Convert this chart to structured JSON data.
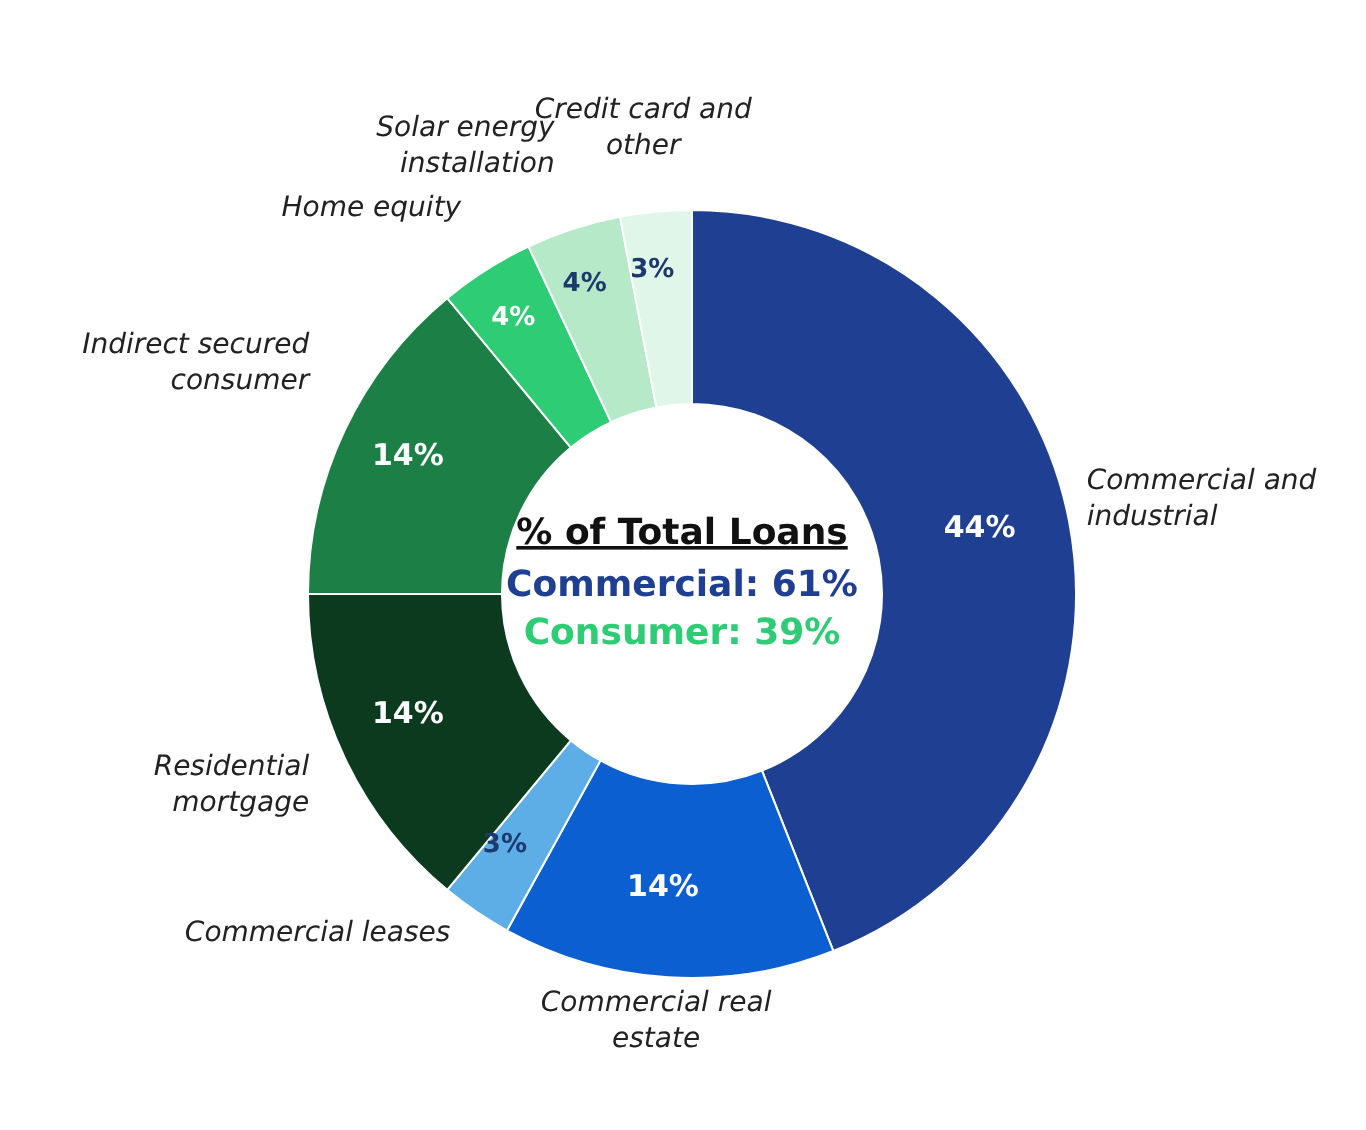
{
  "chart_data": {
    "type": "donut",
    "title": "% of Total Loans",
    "categories": [
      "Commercial and industrial",
      "Commercial real estate",
      "Commercial leases",
      "Residential mortgage",
      "Indirect secured consumer",
      "Home equity",
      "Solar energy installation",
      "Credit card and other"
    ],
    "values": [
      44,
      14,
      3,
      14,
      14,
      4,
      4,
      3
    ],
    "value_labels": [
      "44%",
      "14%",
      "3%",
      "14%",
      "14%",
      "4%",
      "4%",
      "3%"
    ],
    "colors": [
      "#1f3f93",
      "#0b5fd0",
      "#5dade6",
      "#0b3a1e",
      "#1b7f46",
      "#2ecc74",
      "#b6e9c8",
      "#dff6e8"
    ],
    "annotations": [
      "Commercial: 61%",
      "Consumer: 39%"
    ]
  }
}
